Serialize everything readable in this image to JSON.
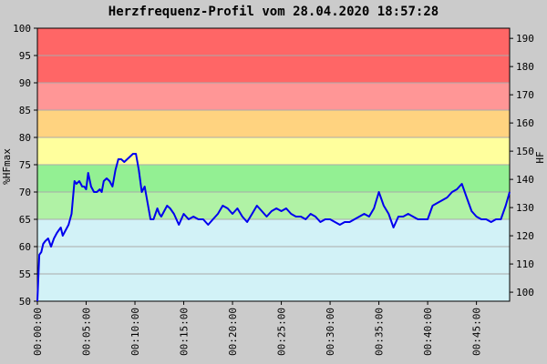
{
  "chart_data": {
    "type": "line",
    "title": "Herzfrequenz-Profil vom 28.04.2020 18:57:28",
    "ylabel_left": "%HFmax",
    "ylabel_right": "HF",
    "xlim": [
      0,
      48.4
    ],
    "ylim_left": [
      50,
      100
    ],
    "ylim_right": [
      96.8,
      193.6
    ],
    "hfmax": 193.6,
    "y_ticks_left": [
      "50",
      "55",
      "60",
      "65",
      "70",
      "75",
      "80",
      "85",
      "90",
      "95",
      "100"
    ],
    "y_ticks_right": [
      "100",
      "110",
      "120",
      "130",
      "140",
      "150",
      "160",
      "170",
      "180",
      "190"
    ],
    "x_ticks": [
      "00:00:00",
      "00:05:00",
      "00:10:00",
      "00:15:00",
      "00:20:00",
      "00:25:00",
      "00:30:00",
      "00:35:00",
      "00:40:00",
      "00:45:00"
    ],
    "zones": [
      {
        "from": 50,
        "to": 65,
        "color": "#d2f2f7"
      },
      {
        "from": 65,
        "to": 70,
        "color": "#b0f2a5"
      },
      {
        "from": 70,
        "to": 75,
        "color": "#93f093"
      },
      {
        "from": 75,
        "to": 80,
        "color": "#ffff9d"
      },
      {
        "from": 80,
        "to": 85,
        "color": "#ffd380"
      },
      {
        "from": 85,
        "to": 90,
        "color": "#ff9696"
      },
      {
        "from": 90,
        "to": 100,
        "color": "#ff6666"
      }
    ],
    "grid": true,
    "line_color": "#0000ee",
    "series": [
      {
        "x": [
          0,
          0.2,
          0.4,
          0.6,
          0.8,
          1.1,
          1.4,
          1.7,
          2.0,
          2.2,
          2.4,
          2.6,
          2.9,
          3.2,
          3.5,
          3.8,
          4.0,
          4.3,
          4.6,
          4.8,
          5.0,
          5.2,
          5.5,
          5.8,
          6.1,
          6.4,
          6.6,
          6.8,
          7.1,
          7.4,
          7.7,
          8.0,
          8.3,
          8.6,
          8.9,
          9.2,
          9.5,
          9.8,
          10.1,
          10.4,
          10.7,
          11.0,
          11.3,
          11.6,
          11.9,
          12.1,
          12.3,
          12.5,
          12.7,
          13.0,
          13.3,
          13.6,
          14.0,
          14.5,
          15.0,
          15.5,
          16.0,
          16.5,
          17.0,
          17.5,
          18.0,
          18.5,
          19.0,
          19.5,
          20.0,
          20.5,
          21.0,
          21.5,
          22.0,
          22.5,
          23.0,
          23.5,
          24.0,
          24.5,
          25.0,
          25.5,
          26.0,
          26.5,
          27.0,
          27.5,
          28.0,
          28.5,
          29.0,
          29.5,
          30.0,
          30.5,
          31.0,
          31.5,
          32.0,
          32.5,
          33.0,
          33.5,
          34.0,
          34.5,
          35.0,
          35.5,
          36.0,
          36.5,
          37.0,
          37.5,
          38.0,
          38.5,
          39.0,
          39.5,
          40.0,
          40.5,
          41.0,
          41.5,
          42.0,
          42.5,
          43.0,
          43.5,
          44.0,
          44.5,
          45.0,
          45.5,
          46.0,
          46.5,
          47.0,
          47.5,
          48.0,
          48.4
        ],
        "values": [
          50,
          58.5,
          59,
          60.5,
          61,
          61.5,
          60,
          61.5,
          62.5,
          63,
          63.5,
          62,
          63,
          64,
          66,
          72,
          71.5,
          72,
          71,
          71,
          70.5,
          73.5,
          71,
          70,
          70,
          70.5,
          70,
          72,
          72.5,
          72,
          71,
          74,
          76,
          76,
          75.5,
          76,
          76.5,
          77,
          77,
          74,
          70,
          71,
          68,
          65,
          65,
          66,
          67,
          66,
          65.5,
          66.5,
          67.5,
          67,
          66,
          64,
          66,
          65,
          65.5,
          65,
          65,
          64,
          65,
          66,
          67.5,
          67,
          66,
          67,
          65.5,
          64.5,
          66,
          67.5,
          66.5,
          65.5,
          66.5,
          67,
          66.5,
          67,
          66,
          65.5,
          65.5,
          65,
          66,
          65.5,
          64.5,
          65,
          65,
          64.5,
          64,
          64.5,
          64.5,
          65,
          65.5,
          66,
          65.5,
          67,
          70,
          67.5,
          66,
          63.5,
          65.5,
          65.5,
          66,
          65.5,
          65,
          65,
          65,
          67.5,
          68,
          68.5,
          69,
          70,
          70.5,
          71.5,
          69,
          66.5,
          65.5,
          65,
          65,
          64.5,
          65,
          65,
          67.5,
          70
        ]
      }
    ]
  }
}
